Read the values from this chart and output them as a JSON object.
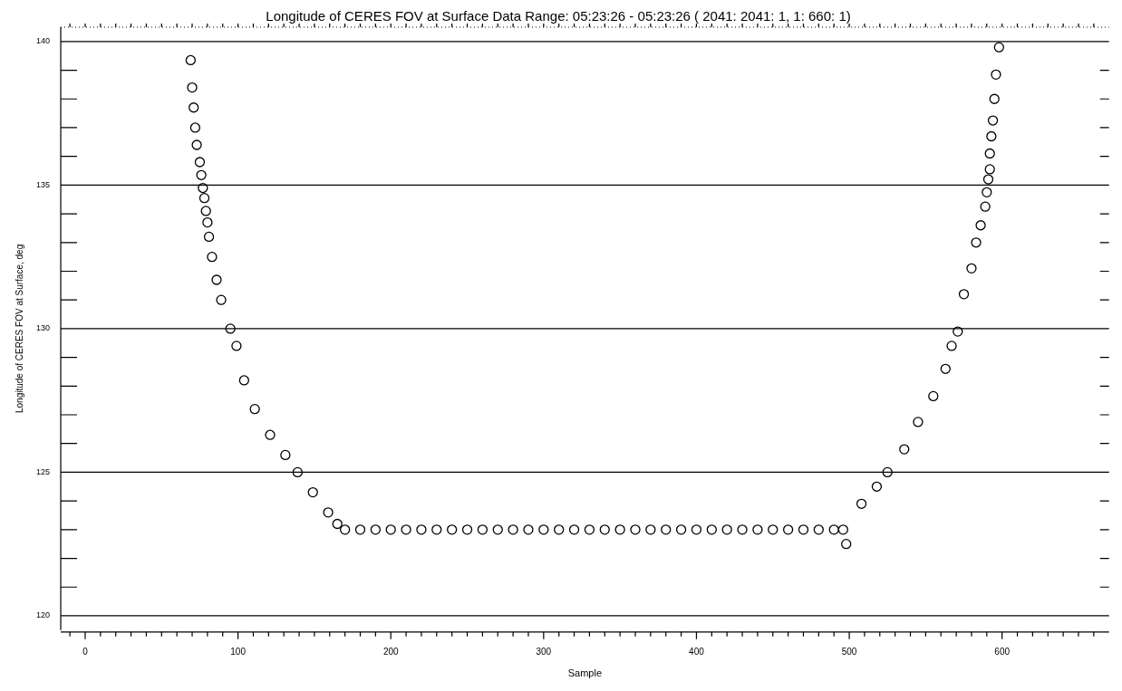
{
  "chart_data": {
    "type": "scatter",
    "title": "Longitude of CERES FOV at Surface Data Range: 05:23:26 - 05:23:26 ( 2041: 2041: 1, 1: 660: 1)",
    "xlabel": "Sample",
    "ylabel": "Longitude of CERES FOV at Surface, deg",
    "xlim": [
      -16,
      670
    ],
    "ylim": [
      119.5,
      140.5
    ],
    "xticks": [
      {
        "value": -10,
        "label": null
      },
      0,
      {
        "value": 10,
        "label": null
      },
      {
        "value": 20,
        "label": null
      },
      {
        "value": 30,
        "label": null
      },
      {
        "value": 40,
        "label": null
      },
      {
        "value": 50,
        "label": null
      },
      {
        "value": 60,
        "label": null
      },
      {
        "value": 70,
        "label": null
      },
      {
        "value": 80,
        "label": null
      },
      {
        "value": 90,
        "label": null
      },
      100,
      {
        "value": 110,
        "label": null
      },
      {
        "value": 120,
        "label": null
      },
      {
        "value": 130,
        "label": null
      },
      {
        "value": 140,
        "label": null
      },
      {
        "value": 150,
        "label": null
      },
      {
        "value": 160,
        "label": null
      },
      {
        "value": 170,
        "label": null
      },
      {
        "value": 180,
        "label": null
      },
      {
        "value": 190,
        "label": null
      },
      200,
      {
        "value": 210,
        "label": null
      },
      {
        "value": 220,
        "label": null
      },
      {
        "value": 230,
        "label": null
      },
      {
        "value": 240,
        "label": null
      },
      {
        "value": 250,
        "label": null
      },
      {
        "value": 260,
        "label": null
      },
      {
        "value": 270,
        "label": null
      },
      {
        "value": 280,
        "label": null
      },
      {
        "value": 290,
        "label": null
      },
      300,
      {
        "value": 310,
        "label": null
      },
      {
        "value": 320,
        "label": null
      },
      {
        "value": 330,
        "label": null
      },
      {
        "value": 340,
        "label": null
      },
      {
        "value": 350,
        "label": null
      },
      {
        "value": 360,
        "label": null
      },
      {
        "value": 370,
        "label": null
      },
      {
        "value": 380,
        "label": null
      },
      {
        "value": 390,
        "label": null
      },
      400,
      {
        "value": 410,
        "label": null
      },
      {
        "value": 420,
        "label": null
      },
      {
        "value": 430,
        "label": null
      },
      {
        "value": 440,
        "label": null
      },
      {
        "value": 450,
        "label": null
      },
      {
        "value": 460,
        "label": null
      },
      {
        "value": 470,
        "label": null
      },
      {
        "value": 480,
        "label": null
      },
      {
        "value": 490,
        "label": null
      },
      500,
      {
        "value": 510,
        "label": null
      },
      {
        "value": 520,
        "label": null
      },
      {
        "value": 530,
        "label": null
      },
      {
        "value": 540,
        "label": null
      },
      {
        "value": 550,
        "label": null
      },
      {
        "value": 560,
        "label": null
      },
      {
        "value": 570,
        "label": null
      },
      {
        "value": 580,
        "label": null
      },
      {
        "value": 590,
        "label": null
      },
      600,
      {
        "value": 610,
        "label": null
      },
      {
        "value": 620,
        "label": null
      },
      {
        "value": 630,
        "label": null
      },
      {
        "value": 640,
        "label": null
      },
      {
        "value": 650,
        "label": null
      },
      {
        "value": 660,
        "label": null
      }
    ],
    "yticks": [
      120,
      {
        "value": 121,
        "label": null
      },
      {
        "value": 122,
        "label": null
      },
      {
        "value": 123,
        "label": null
      },
      {
        "value": 124,
        "label": null
      },
      125,
      {
        "value": 126,
        "label": null
      },
      {
        "value": 127,
        "label": null
      },
      {
        "value": 128,
        "label": null
      },
      {
        "value": 129,
        "label": null
      },
      130,
      {
        "value": 131,
        "label": null
      },
      {
        "value": 132,
        "label": null
      },
      {
        "value": 133,
        "label": null
      },
      {
        "value": 134,
        "label": null
      },
      135,
      {
        "value": 136,
        "label": null
      },
      {
        "value": 137,
        "label": null
      },
      {
        "value": 138,
        "label": null
      },
      {
        "value": 139,
        "label": null
      },
      140
    ],
    "grid": "y",
    "marker": "circle",
    "series": [
      {
        "color": "#000000",
        "x": [
          69,
          70,
          71,
          72,
          73,
          75,
          76,
          77,
          78,
          79,
          80,
          81,
          83,
          86,
          89,
          95,
          99,
          104,
          111,
          121,
          131,
          139,
          149,
          159,
          165,
          170,
          180,
          190,
          200,
          210,
          220,
          230,
          240,
          250,
          260,
          270,
          280,
          290,
          300,
          310,
          320,
          330,
          340,
          350,
          360,
          370,
          380,
          390,
          400,
          410,
          420,
          430,
          440,
          450,
          460,
          470,
          480,
          490,
          496,
          498,
          508,
          518,
          525,
          536,
          545,
          555,
          563,
          567,
          571,
          575,
          580,
          583,
          586,
          589,
          590,
          591,
          592,
          592,
          593,
          594,
          595,
          596,
          598
        ],
        "values": [
          139.35,
          138.4,
          137.7,
          137.0,
          136.4,
          135.8,
          135.35,
          134.9,
          134.55,
          134.1,
          133.7,
          133.2,
          132.5,
          131.7,
          131.0,
          130.0,
          129.4,
          128.2,
          127.2,
          126.3,
          125.6,
          125.0,
          124.3,
          123.6,
          123.2,
          123.0,
          123.0,
          123.0,
          123.0,
          123.0,
          123.0,
          123.0,
          123.0,
          123.0,
          123.0,
          123.0,
          123.0,
          123.0,
          123.0,
          123.0,
          123.0,
          123.0,
          123.0,
          123.0,
          123.0,
          123.0,
          123.0,
          123.0,
          123.0,
          123.0,
          123.0,
          123.0,
          123.0,
          123.0,
          123.0,
          123.0,
          123.0,
          123.0,
          123.0,
          122.5,
          123.9,
          124.5,
          125.0,
          125.8,
          126.75,
          127.65,
          128.6,
          129.4,
          129.9,
          131.2,
          132.1,
          133.0,
          133.6,
          134.25,
          134.75,
          135.2,
          135.55,
          136.1,
          136.7,
          137.25,
          138.0,
          138.85,
          139.8
        ]
      }
    ]
  }
}
